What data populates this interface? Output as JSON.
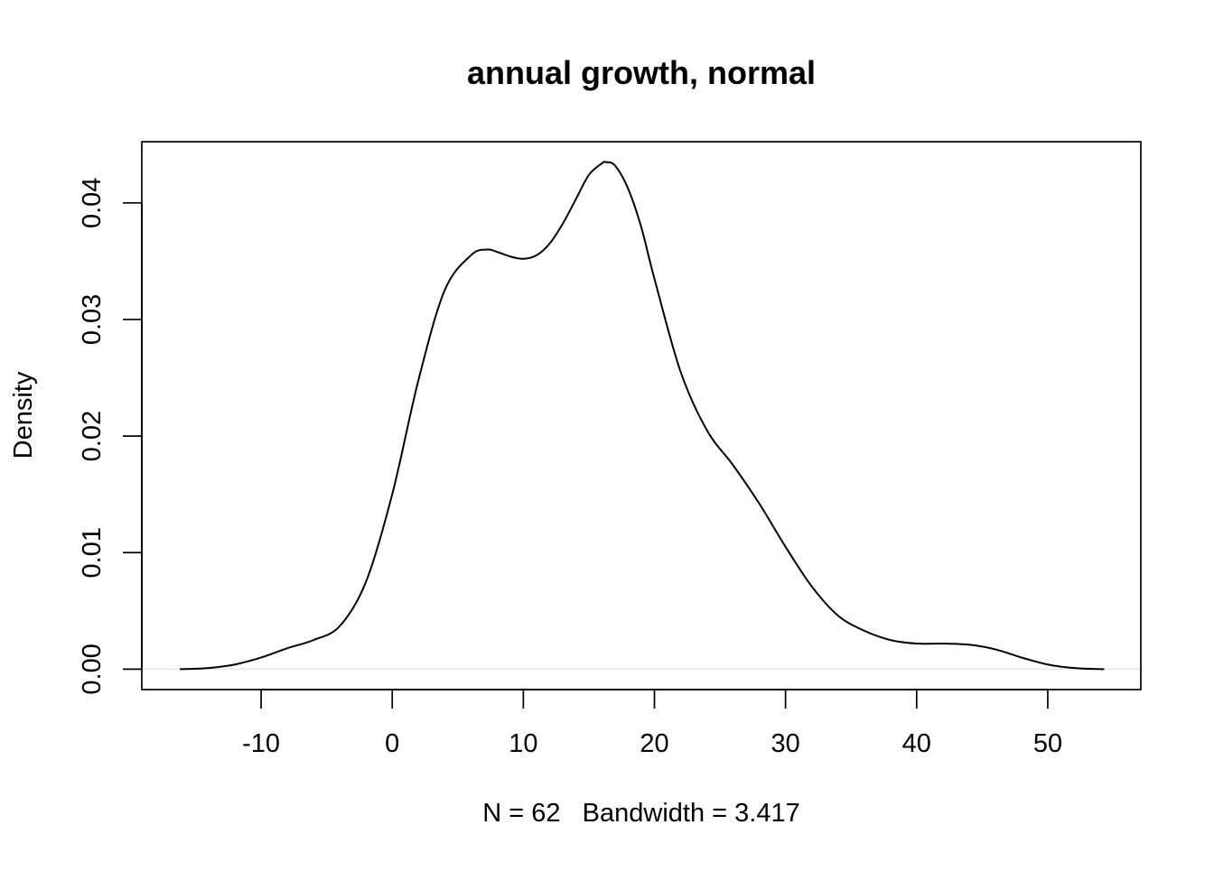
{
  "chart_data": {
    "type": "line",
    "title": "annual growth, normal",
    "xlabel": "N = 62   Bandwidth = 3.417",
    "ylabel": "Density",
    "xlim": [
      -19.1,
      57.1
    ],
    "ylim": [
      -0.00175,
      0.04525
    ],
    "x_ticks": [
      -10,
      0,
      10,
      20,
      30,
      40,
      50
    ],
    "x_tick_labels": [
      "-10",
      "0",
      "10",
      "20",
      "30",
      "40",
      "50"
    ],
    "y_ticks": [
      0,
      0.01,
      0.02,
      0.03,
      0.04
    ],
    "y_tick_labels": [
      "0.00",
      "0.01",
      "0.02",
      "0.03",
      "0.04"
    ],
    "grid": false,
    "legend": "none",
    "colors": {
      "line": "#000000",
      "zero_line": "#e6e6e6",
      "frame": "#000000"
    },
    "series": [
      {
        "x": [
          -16.2,
          -14,
          -12,
          -10,
          -8,
          -6,
          -4,
          -2,
          0,
          2,
          4,
          6,
          7.2,
          8,
          9,
          10,
          11,
          12,
          13,
          14,
          15,
          16,
          16.3,
          17,
          18,
          19,
          20,
          22,
          24,
          26,
          28,
          30,
          32,
          34,
          36,
          38,
          40,
          42,
          44,
          46,
          48,
          50,
          52,
          54.3
        ],
        "y": [
          0,
          0.0001,
          0.0004,
          0.001,
          0.0018,
          0.0025,
          0.0037,
          0.0075,
          0.015,
          0.0248,
          0.0325,
          0.0355,
          0.036,
          0.0358,
          0.0354,
          0.0352,
          0.0355,
          0.0365,
          0.0382,
          0.0403,
          0.0424,
          0.0434,
          0.0435,
          0.0432,
          0.0412,
          0.0379,
          0.0335,
          0.0255,
          0.0205,
          0.0175,
          0.0142,
          0.0105,
          0.0071,
          0.0046,
          0.0033,
          0.0025,
          0.0022,
          0.0022,
          0.0021,
          0.0017,
          0.001,
          0.0004,
          0.0001,
          0
        ]
      }
    ]
  }
}
